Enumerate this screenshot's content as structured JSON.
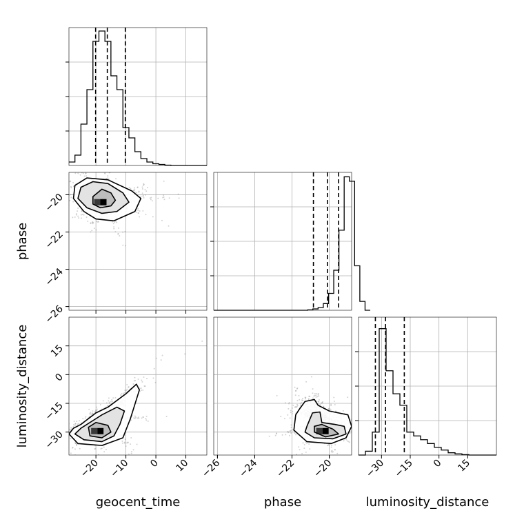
{
  "chart_data": {
    "type": "corner",
    "grid": true,
    "parameters": [
      "geocent_time",
      "phase",
      "luminosity_distance"
    ],
    "axis_labels": {
      "geocent_time": "geocent_time",
      "phase": "phase",
      "luminosity_distance": "luminosity_distance"
    },
    "ranges": {
      "geocent_time": [
        -29,
        17
      ],
      "phase": [
        -26.2,
        -18.8
      ],
      "luminosity_distance": [
        -42,
        30
      ]
    },
    "ticks": {
      "geocent_time": [
        -20,
        -10,
        0,
        10
      ],
      "phase": [
        -26,
        -24,
        -22,
        -20
      ],
      "luminosity_distance_row": [
        -30,
        -15,
        0,
        15
      ],
      "luminosity_distance_col": [
        -30,
        -15,
        0,
        15
      ]
    },
    "histograms": [
      {
        "parameter": "geocent_time",
        "bin_start": -29,
        "bin_width": 2,
        "counts": [
          1,
          3,
          12,
          22,
          36,
          39,
          36,
          26,
          22,
          11,
          8,
          4,
          2,
          1,
          0.5,
          0.3,
          0.1,
          0,
          0,
          0,
          0,
          0,
          0
        ],
        "ymax": 40,
        "quantiles": [
          -20.1,
          -16.2,
          -10.2
        ]
      },
      {
        "parameter": "phase",
        "bin_start": -26.2,
        "bin_width": 0.28,
        "counts": [
          0,
          0,
          0,
          0,
          0,
          0,
          0,
          0,
          0,
          0,
          0,
          0,
          0,
          0,
          0,
          0,
          0,
          0,
          0.1,
          0.3,
          0.6,
          1.5,
          3.8,
          9,
          18,
          30,
          29,
          10,
          2,
          0
        ],
        "ymax": 31,
        "quantiles": [
          -20.85,
          -20.1,
          -19.5
        ]
      },
      {
        "parameter": "luminosity_distance",
        "bin_start": -42,
        "bin_width": 3.6,
        "counts": [
          0,
          1,
          6,
          33,
          22,
          16,
          13,
          6,
          5,
          4,
          3,
          2,
          1.3,
          0.6,
          0.3,
          0.1,
          0,
          0,
          0,
          0
        ],
        "ymax": 36,
        "quantiles": [
          -33.2,
          -27.9,
          -18.1
        ]
      }
    ],
    "scatter_2d": [
      {
        "x_param": "geocent_time",
        "y_param": "phase",
        "description": "negative correlation, density peak near (-17.5, -20.4)",
        "density_peak": [
          -17.5,
          -20.4
        ],
        "contours": [
          [
            [
              -21,
              -20.1
            ],
            [
              -18,
              -19.7
            ],
            [
              -15,
              -19.9
            ],
            [
              -13.5,
              -20.3
            ],
            [
              -15,
              -20.6
            ],
            [
              -18.5,
              -20.7
            ],
            [
              -21,
              -20.5
            ]
          ],
          [
            [
              -25,
              -19.6
            ],
            [
              -21,
              -19.3
            ],
            [
              -16,
              -19.4
            ],
            [
              -11,
              -19.9
            ],
            [
              -9,
              -20.4
            ],
            [
              -13,
              -20.9
            ],
            [
              -18,
              -21.0
            ],
            [
              -23,
              -20.7
            ],
            [
              -26,
              -20.2
            ]
          ],
          [
            [
              -27,
              -19.5
            ],
            [
              -23,
              -19.1
            ],
            [
              -16,
              -19.2
            ],
            [
              -8,
              -19.8
            ],
            [
              -5,
              -20.2
            ],
            [
              -7,
              -20.9
            ],
            [
              -14,
              -21.4
            ],
            [
              -20,
              -21.3
            ],
            [
              -24,
              -20.9
            ],
            [
              -27.5,
              -20.2
            ]
          ]
        ]
      },
      {
        "x_param": "geocent_time",
        "y_param": "luminosity_distance",
        "description": "positive correlation, density peak near (-18.5, -29.5)",
        "density_peak": [
          -18.5,
          -29.5
        ],
        "contours": [
          [
            [
              -22.5,
              -27.5
            ],
            [
              -20,
              -25
            ],
            [
              -16,
              -26.5
            ],
            [
              -15,
              -30
            ],
            [
              -18,
              -33
            ],
            [
              -22,
              -32
            ]
          ],
          [
            [
              -25,
              -28
            ],
            [
              -21,
              -24
            ],
            [
              -18,
              -21
            ],
            [
              -13,
              -17
            ],
            [
              -10.5,
              -19
            ],
            [
              -12,
              -26
            ],
            [
              -14,
              -32
            ],
            [
              -18,
              -35
            ],
            [
              -24,
              -34
            ],
            [
              -27,
              -31
            ]
          ],
          [
            [
              -25,
              -26
            ],
            [
              -20,
              -20
            ],
            [
              -16,
              -17
            ],
            [
              -10,
              -10
            ],
            [
              -6.5,
              -5
            ],
            [
              -5.5,
              -8
            ],
            [
              -8.5,
              -23
            ],
            [
              -11,
              -33
            ],
            [
              -18,
              -37
            ],
            [
              -26,
              -36
            ],
            [
              -29,
              -31
            ],
            [
              -27.5,
              -28
            ]
          ]
        ]
      },
      {
        "x_param": "phase",
        "y_param": "luminosity_distance",
        "description": "density peak near (-20.2, -29.5)",
        "density_peak": [
          -20.2,
          -29.5
        ],
        "contours": [
          [
            [
              -20.8,
              -27
            ],
            [
              -20.4,
              -26
            ],
            [
              -19.8,
              -28.5
            ],
            [
              -19.5,
              -31
            ],
            [
              -20.2,
              -32.5
            ],
            [
              -20.8,
              -30
            ]
          ],
          [
            [
              -21.2,
              -27
            ],
            [
              -20.9,
              -20
            ],
            [
              -20.5,
              -19.5
            ],
            [
              -20.4,
              -25
            ],
            [
              -19.7,
              -26
            ],
            [
              -19.2,
              -27
            ],
            [
              -19.1,
              -31
            ],
            [
              -19.8,
              -33.5
            ],
            [
              -20.8,
              -33
            ],
            [
              -21.3,
              -30
            ]
          ],
          [
            [
              -21.6,
              -18
            ],
            [
              -21.3,
              -14
            ],
            [
              -20.8,
              -13
            ],
            [
              -20.6,
              -16
            ],
            [
              -20.0,
              -19
            ],
            [
              -19.0,
              -21
            ],
            [
              -18.8,
              -27
            ],
            [
              -19.1,
              -33
            ],
            [
              -19.9,
              -36
            ],
            [
              -21.2,
              -35
            ],
            [
              -21.9,
              -29
            ],
            [
              -21.8,
              -21
            ]
          ]
        ]
      }
    ]
  }
}
